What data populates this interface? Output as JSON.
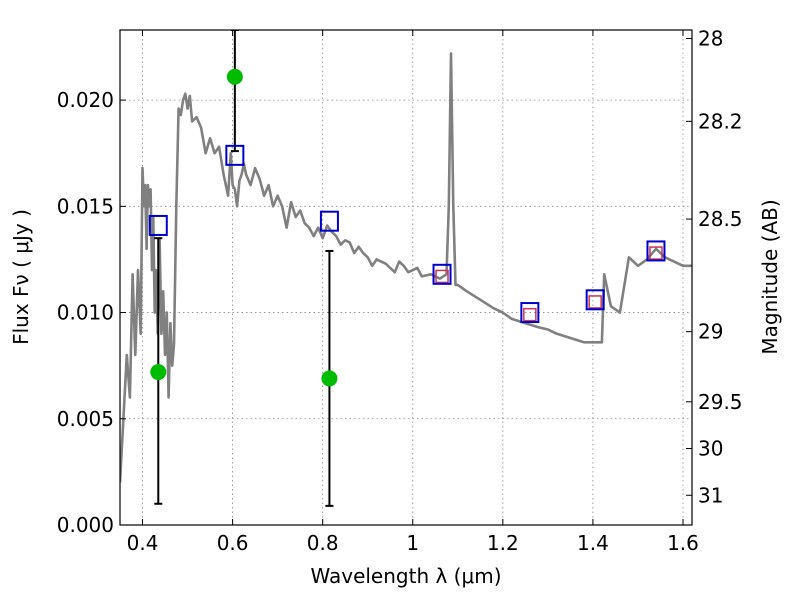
{
  "chart_data": {
    "type": "scatter",
    "xlabel": "Wavelength  λ (μm)",
    "ylabel_left": "Flux  Fν  ( μJy )",
    "ylabel_right": "Magnitude (AB)",
    "xlim": [
      0.35,
      1.62
    ],
    "ylim": [
      0.0,
      0.0233
    ],
    "grid": true,
    "x_ticks": [
      {
        "value": 0.4,
        "label": "0.4"
      },
      {
        "value": 0.6,
        "label": "0.6"
      },
      {
        "value": 0.8,
        "label": "0.8"
      },
      {
        "value": 1.0,
        "label": "1"
      },
      {
        "value": 1.2,
        "label": "1.2"
      },
      {
        "value": 1.4,
        "label": "1.4"
      },
      {
        "value": 1.6,
        "label": "1.6"
      }
    ],
    "y_ticks": [
      {
        "value": 0.0,
        "label": "0.000"
      },
      {
        "value": 0.005,
        "label": "0.005"
      },
      {
        "value": 0.01,
        "label": "0.010"
      },
      {
        "value": 0.015,
        "label": "0.015"
      },
      {
        "value": 0.02,
        "label": "0.020"
      }
    ],
    "right_ticks": [
      {
        "flux": 0.0229,
        "label": "28"
      },
      {
        "flux": 0.019,
        "label": "28.2"
      },
      {
        "flux": 0.0144,
        "label": "28.5"
      },
      {
        "flux": 0.0091,
        "label": "29"
      },
      {
        "flux": 0.0058,
        "label": "29.5"
      },
      {
        "flux": 0.0036,
        "label": "30"
      },
      {
        "flux": 0.0014,
        "label": "31"
      }
    ],
    "colors": {
      "sed": "#808080",
      "obs_points": "#00bb00",
      "errorbars": "#000000",
      "model_squares": "#0000cc",
      "model_inner_squares": "#cc3355",
      "grid": "#888888"
    },
    "sed_curve": {
      "x": [
        0.35,
        0.365,
        0.372,
        0.378,
        0.384,
        0.39,
        0.396,
        0.4,
        0.403,
        0.406,
        0.409,
        0.412,
        0.415,
        0.418,
        0.421,
        0.424,
        0.427,
        0.43,
        0.434,
        0.438,
        0.442,
        0.446,
        0.45,
        0.454,
        0.458,
        0.462,
        0.466,
        0.47,
        0.475,
        0.48,
        0.485,
        0.49,
        0.495,
        0.5,
        0.505,
        0.51,
        0.52,
        0.53,
        0.54,
        0.55,
        0.56,
        0.57,
        0.58,
        0.59,
        0.596,
        0.6,
        0.605,
        0.61,
        0.615,
        0.62,
        0.625,
        0.63,
        0.64,
        0.65,
        0.66,
        0.67,
        0.68,
        0.69,
        0.7,
        0.71,
        0.72,
        0.73,
        0.74,
        0.75,
        0.76,
        0.77,
        0.78,
        0.79,
        0.8,
        0.81,
        0.82,
        0.83,
        0.84,
        0.85,
        0.86,
        0.87,
        0.88,
        0.89,
        0.9,
        0.91,
        0.92,
        0.93,
        0.94,
        0.95,
        0.96,
        0.97,
        0.98,
        0.99,
        1.0,
        1.01,
        1.02,
        1.04,
        1.06,
        1.075,
        1.08,
        1.085,
        1.09,
        1.095,
        1.1,
        1.12,
        1.15,
        1.18,
        1.2,
        1.22,
        1.25,
        1.28,
        1.3,
        1.32,
        1.35,
        1.38,
        1.4,
        1.42,
        1.425,
        1.44,
        1.46,
        1.48,
        1.5,
        1.52,
        1.54,
        1.56,
        1.58,
        1.6,
        1.62
      ],
      "y": [
        0.002,
        0.008,
        0.006,
        0.0118,
        0.008,
        0.012,
        0.009,
        0.0168,
        0.015,
        0.016,
        0.013,
        0.016,
        0.015,
        0.0158,
        0.012,
        0.0145,
        0.01,
        0.012,
        0.009,
        0.0135,
        0.009,
        0.011,
        0.008,
        0.01,
        0.006,
        0.0095,
        0.0075,
        0.0085,
        0.015,
        0.0196,
        0.0193,
        0.02,
        0.0203,
        0.0196,
        0.0202,
        0.019,
        0.0192,
        0.0187,
        0.0175,
        0.0182,
        0.0175,
        0.0178,
        0.0165,
        0.0155,
        0.0175,
        0.016,
        0.0158,
        0.015,
        0.0162,
        0.0165,
        0.017,
        0.0165,
        0.016,
        0.0168,
        0.0163,
        0.0155,
        0.016,
        0.015,
        0.0155,
        0.015,
        0.014,
        0.0152,
        0.0145,
        0.0148,
        0.0142,
        0.014,
        0.0136,
        0.014,
        0.0135,
        0.0141,
        0.0138,
        0.0136,
        0.0132,
        0.0134,
        0.0133,
        0.0128,
        0.0131,
        0.0128,
        0.0126,
        0.0122,
        0.0125,
        0.0124,
        0.0123,
        0.0121,
        0.0119,
        0.0124,
        0.0122,
        0.0119,
        0.012,
        0.0121,
        0.0117,
        0.0118,
        0.0116,
        0.0118,
        0.015,
        0.0222,
        0.015,
        0.0113,
        0.0113,
        0.011,
        0.0106,
        0.0102,
        0.01,
        0.0097,
        0.0095,
        0.0093,
        0.0092,
        0.009,
        0.0088,
        0.0086,
        0.0086,
        0.0086,
        0.0118,
        0.0103,
        0.01,
        0.0126,
        0.0122,
        0.0125,
        0.013,
        0.0126,
        0.0124,
        0.0122,
        0.0122
      ]
    },
    "observations": [
      {
        "x": 0.435,
        "y": 0.0072,
        "err_low": 0.001,
        "err_high": 0.0135
      },
      {
        "x": 0.605,
        "y": 0.0211,
        "err_low": 0.0176,
        "err_high": 0.0233
      },
      {
        "x": 0.815,
        "y": 0.0069,
        "err_low": 0.0009,
        "err_high": 0.0129
      }
    ],
    "model_points": [
      {
        "x": 0.435,
        "y": 0.0141
      },
      {
        "x": 0.605,
        "y": 0.0174
      },
      {
        "x": 0.815,
        "y": 0.0143
      },
      {
        "x": 1.065,
        "y": 0.0118
      },
      {
        "x": 1.26,
        "y": 0.01
      },
      {
        "x": 1.405,
        "y": 0.0106
      },
      {
        "x": 1.54,
        "y": 0.0129
      }
    ],
    "model_inner_points": [
      {
        "x": 1.065,
        "y": 0.0117
      },
      {
        "x": 1.26,
        "y": 0.0099
      },
      {
        "x": 1.405,
        "y": 0.0105
      },
      {
        "x": 1.54,
        "y": 0.0128
      }
    ]
  }
}
